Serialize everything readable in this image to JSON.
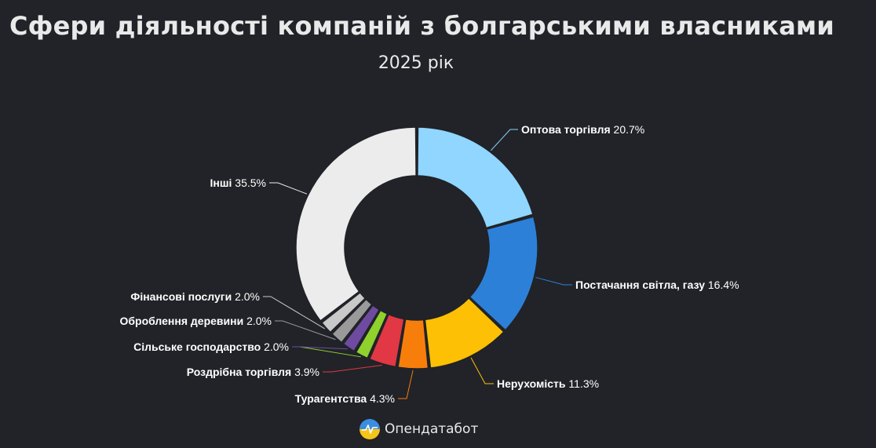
{
  "header": {
    "title": "Сфери діяльності компаній з болгарськими власниками",
    "subtitle": "2025 рік"
  },
  "brand": {
    "name": "Опендатабот",
    "icon": "opendatabot-logo-icon"
  },
  "chart_data": {
    "type": "pie",
    "variant": "donut",
    "legend": "none",
    "value_suffix": "%",
    "slices": [
      {
        "label": "Оптова торгівля",
        "value": 20.7,
        "value_text": "20.7%",
        "color": "#90d6ff"
      },
      {
        "label": "Постачання світла, газу",
        "value": 16.4,
        "value_text": "16.4%",
        "color": "#2d80d8"
      },
      {
        "label": "Нерухомість",
        "value": 11.3,
        "value_text": "11.3%",
        "color": "#fdc004"
      },
      {
        "label": "Турагентства",
        "value": 4.3,
        "value_text": "4.3%",
        "color": "#f77e0b"
      },
      {
        "label": "Роздрібна торгівля",
        "value": 3.9,
        "value_text": "3.9%",
        "color": "#e23744"
      },
      {
        "label": "Сільське господарство",
        "value": 2.0,
        "value_text": "2.0%",
        "color": "#8fd12d"
      },
      {
        "label": "Сільське господарство",
        "value": 2.0,
        "value_text": "2.0%",
        "color": "#6e4ba0"
      },
      {
        "label": "Оброблення деревини",
        "value": 2.0,
        "value_text": "2.0%",
        "color": "#9a9a9a"
      },
      {
        "label": "Фінансові послуги",
        "value": 2.0,
        "value_text": "2.0%",
        "color": "#c9c9c9"
      },
      {
        "label": "Інші",
        "value": 35.5,
        "value_text": "35.5%",
        "color": "#ececec"
      }
    ]
  }
}
